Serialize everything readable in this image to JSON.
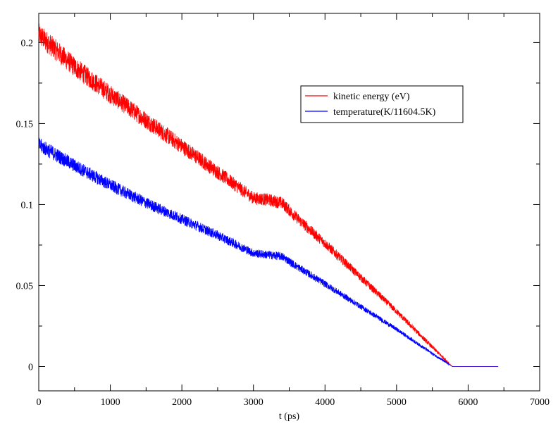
{
  "chart_data": {
    "type": "line",
    "title": "",
    "xlabel": "t (ps)",
    "ylabel": "",
    "xlim": [
      0,
      7000
    ],
    "ylim": [
      -0.015,
      0.218
    ],
    "xticks": [
      0,
      1000,
      2000,
      3000,
      4000,
      5000,
      6000,
      7000
    ],
    "yticks": [
      0,
      0.05,
      0.1,
      0.15,
      0.2
    ],
    "xtick_labels": [
      "0",
      "1000",
      "2000",
      "3000",
      "4000",
      "5000",
      "6000",
      "7000"
    ],
    "ytick_labels": [
      "0",
      "0.05",
      "0.1",
      "0.15",
      "0.2"
    ],
    "grid": false,
    "legend_position": "top-right",
    "series": [
      {
        "name": "kinetic energy (eV)",
        "color": "#ff0000",
        "noise": 0.006,
        "x": [
          0,
          500,
          1000,
          1500,
          2000,
          2500,
          3000,
          3200,
          3400,
          3600,
          4000,
          4500,
          5000,
          5500,
          5780,
          6420
        ],
        "y": [
          0.205,
          0.185,
          0.168,
          0.152,
          0.136,
          0.12,
          0.104,
          0.103,
          0.101,
          0.092,
          0.076,
          0.055,
          0.034,
          0.012,
          0.0,
          0.0
        ]
      },
      {
        "name": "temperature(K/11604.5K)",
        "color": "#0000ff",
        "noise": 0.004,
        "x": [
          0,
          500,
          1000,
          1500,
          2000,
          2500,
          3000,
          3200,
          3400,
          3600,
          4000,
          4500,
          5000,
          5500,
          5780,
          6420
        ],
        "y": [
          0.137,
          0.124,
          0.112,
          0.101,
          0.091,
          0.081,
          0.07,
          0.069,
          0.068,
          0.062,
          0.051,
          0.037,
          0.023,
          0.008,
          0.0,
          0.0
        ]
      }
    ]
  }
}
